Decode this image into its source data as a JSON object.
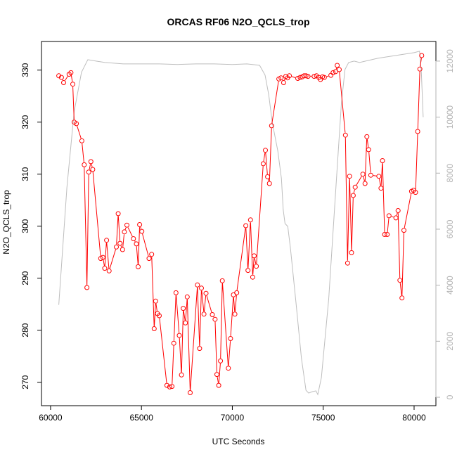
{
  "chart_data": {
    "type": "line",
    "title": "ORCAS RF06 N2O_QCLS_trop",
    "xlabel": "UTC Seconds",
    "ylabel": "N2O_QCLS_trop",
    "xlim": [
      59500,
      81200
    ],
    "ylim": [
      265.5,
      335.5
    ],
    "y2lim": [
      -300,
      12700
    ],
    "x_ticks": [
      60000,
      65000,
      70000,
      75000,
      80000
    ],
    "y_ticks": [
      270,
      280,
      290,
      300,
      310,
      320,
      330
    ],
    "y2_ticks": [
      0,
      2000,
      4000,
      6000,
      8000,
      10000,
      12000
    ],
    "colors": {
      "n2o": "#ff0000",
      "altitude": "#bebebe"
    },
    "series": [
      {
        "style": "points-and-lines",
        "color": "#ff0000",
        "points": [
          [
            60450,
            328.9
          ],
          [
            60600,
            328.6
          ],
          [
            60720,
            327.6
          ],
          [
            61020,
            329.2
          ],
          [
            61120,
            329.5
          ],
          [
            61220,
            327.3
          ],
          [
            61300,
            320.0
          ],
          [
            61420,
            319.7
          ],
          [
            61720,
            316.4
          ],
          [
            61850,
            311.8
          ],
          [
            62000,
            288.2
          ],
          [
            62100,
            310.4
          ],
          [
            62220,
            312.4
          ],
          [
            62320,
            310.9
          ],
          [
            62760,
            293.8
          ],
          [
            62880,
            294.0
          ],
          [
            62980,
            291.9
          ],
          [
            63080,
            297.3
          ],
          [
            63220,
            291.4
          ],
          [
            63620,
            296.0
          ],
          [
            63720,
            302.4
          ],
          [
            63820,
            296.7
          ],
          [
            63960,
            295.5
          ],
          [
            64060,
            298.9
          ],
          [
            64200,
            300.2
          ],
          [
            64560,
            297.6
          ],
          [
            64720,
            296.6
          ],
          [
            64820,
            292.2
          ],
          [
            64900,
            300.3
          ],
          [
            65020,
            299.0
          ],
          [
            65420,
            293.8
          ],
          [
            65560,
            294.6
          ],
          [
            65700,
            280.3
          ],
          [
            65780,
            285.6
          ],
          [
            65880,
            283.2
          ],
          [
            65980,
            282.8
          ],
          [
            66400,
            269.4
          ],
          [
            66550,
            269.1
          ],
          [
            66680,
            269.2
          ],
          [
            66780,
            277.5
          ],
          [
            66900,
            287.2
          ],
          [
            67080,
            279.0
          ],
          [
            67200,
            271.4
          ],
          [
            67300,
            284.2
          ],
          [
            67420,
            281.4
          ],
          [
            67520,
            286.4
          ],
          [
            67680,
            268.0
          ],
          [
            68080,
            288.7
          ],
          [
            68200,
            276.5
          ],
          [
            68300,
            288.1
          ],
          [
            68440,
            283.1
          ],
          [
            68550,
            287.1
          ],
          [
            68900,
            283.0
          ],
          [
            69050,
            282.1
          ],
          [
            69150,
            271.5
          ],
          [
            69250,
            269.4
          ],
          [
            69350,
            274.1
          ],
          [
            69450,
            289.5
          ],
          [
            69780,
            272.7
          ],
          [
            69900,
            278.4
          ],
          [
            70060,
            286.8
          ],
          [
            70140,
            283.1
          ],
          [
            70240,
            287.2
          ],
          [
            70740,
            300.1
          ],
          [
            70860,
            291.5
          ],
          [
            71000,
            301.2
          ],
          [
            71120,
            290.2
          ],
          [
            71200,
            294.3
          ],
          [
            71320,
            292.3
          ],
          [
            71700,
            312.0
          ],
          [
            71820,
            314.6
          ],
          [
            71940,
            309.5
          ],
          [
            72040,
            308.2
          ],
          [
            72160,
            319.3
          ],
          [
            72560,
            328.3
          ],
          [
            72680,
            328.5
          ],
          [
            72820,
            327.6
          ],
          [
            72940,
            328.8
          ],
          [
            73040,
            328.5
          ],
          [
            73140,
            328.9
          ],
          [
            73600,
            328.4
          ],
          [
            73730,
            328.6
          ],
          [
            73850,
            328.7
          ],
          [
            73950,
            328.9
          ],
          [
            74050,
            328.9
          ],
          [
            74160,
            328.8
          ],
          [
            74500,
            328.8
          ],
          [
            74630,
            328.9
          ],
          [
            74760,
            328.6
          ],
          [
            74850,
            328.2
          ],
          [
            74960,
            328.7
          ],
          [
            75060,
            328.6
          ],
          [
            75420,
            329.0
          ],
          [
            75540,
            329.5
          ],
          [
            75680,
            329.7
          ],
          [
            75770,
            330.9
          ],
          [
            75880,
            330.1
          ],
          [
            76220,
            317.5
          ],
          [
            76340,
            292.9
          ],
          [
            76450,
            309.6
          ],
          [
            76560,
            294.9
          ],
          [
            76650,
            305.9
          ],
          [
            76760,
            307.5
          ],
          [
            77180,
            310.0
          ],
          [
            77300,
            308.2
          ],
          [
            77400,
            317.2
          ],
          [
            77500,
            314.7
          ],
          [
            77620,
            309.8
          ],
          [
            78060,
            309.6
          ],
          [
            78180,
            307.3
          ],
          [
            78260,
            312.6
          ],
          [
            78380,
            298.4
          ],
          [
            78520,
            298.4
          ],
          [
            78620,
            302.0
          ],
          [
            79000,
            301.6
          ],
          [
            79120,
            303.0
          ],
          [
            79220,
            289.6
          ],
          [
            79330,
            286.2
          ],
          [
            79440,
            299.2
          ],
          [
            79860,
            306.7
          ],
          [
            79970,
            306.9
          ],
          [
            80080,
            306.5
          ],
          [
            80200,
            318.2
          ],
          [
            80320,
            330.2
          ],
          [
            80420,
            332.8
          ]
        ]
      },
      {
        "style": "line",
        "axis": "right",
        "color": "#bebebe",
        "points": [
          [
            60450,
            3300
          ],
          [
            60900,
            7500
          ],
          [
            61300,
            10200
          ],
          [
            61700,
            11600
          ],
          [
            62050,
            12050
          ],
          [
            62500,
            12000
          ],
          [
            63000,
            11950
          ],
          [
            64000,
            11900
          ],
          [
            65000,
            11900
          ],
          [
            66000,
            11900
          ],
          [
            67000,
            11880
          ],
          [
            68000,
            11900
          ],
          [
            69000,
            11900
          ],
          [
            70000,
            11880
          ],
          [
            70800,
            11900
          ],
          [
            71500,
            11850
          ],
          [
            71800,
            11500
          ],
          [
            72000,
            10800
          ],
          [
            72200,
            9800
          ],
          [
            72500,
            8800
          ],
          [
            72700,
            7800
          ],
          [
            72800,
            6700
          ],
          [
            72900,
            6200
          ],
          [
            73050,
            6100
          ],
          [
            73200,
            5300
          ],
          [
            73500,
            3400
          ],
          [
            73800,
            1400
          ],
          [
            74050,
            250
          ],
          [
            74200,
            150
          ],
          [
            74400,
            200
          ],
          [
            74600,
            230
          ],
          [
            74700,
            100
          ],
          [
            74900,
            700
          ],
          [
            75300,
            3500
          ],
          [
            75700,
            7500
          ],
          [
            76000,
            10500
          ],
          [
            76200,
            11700
          ],
          [
            76400,
            11950
          ],
          [
            76700,
            12000
          ],
          [
            77000,
            11950
          ],
          [
            78000,
            12100
          ],
          [
            79000,
            12200
          ],
          [
            80000,
            12300
          ],
          [
            80300,
            12350
          ],
          [
            80400,
            11600
          ],
          [
            80500,
            10000
          ]
        ]
      }
    ],
    "grid": false,
    "legend": "none"
  }
}
